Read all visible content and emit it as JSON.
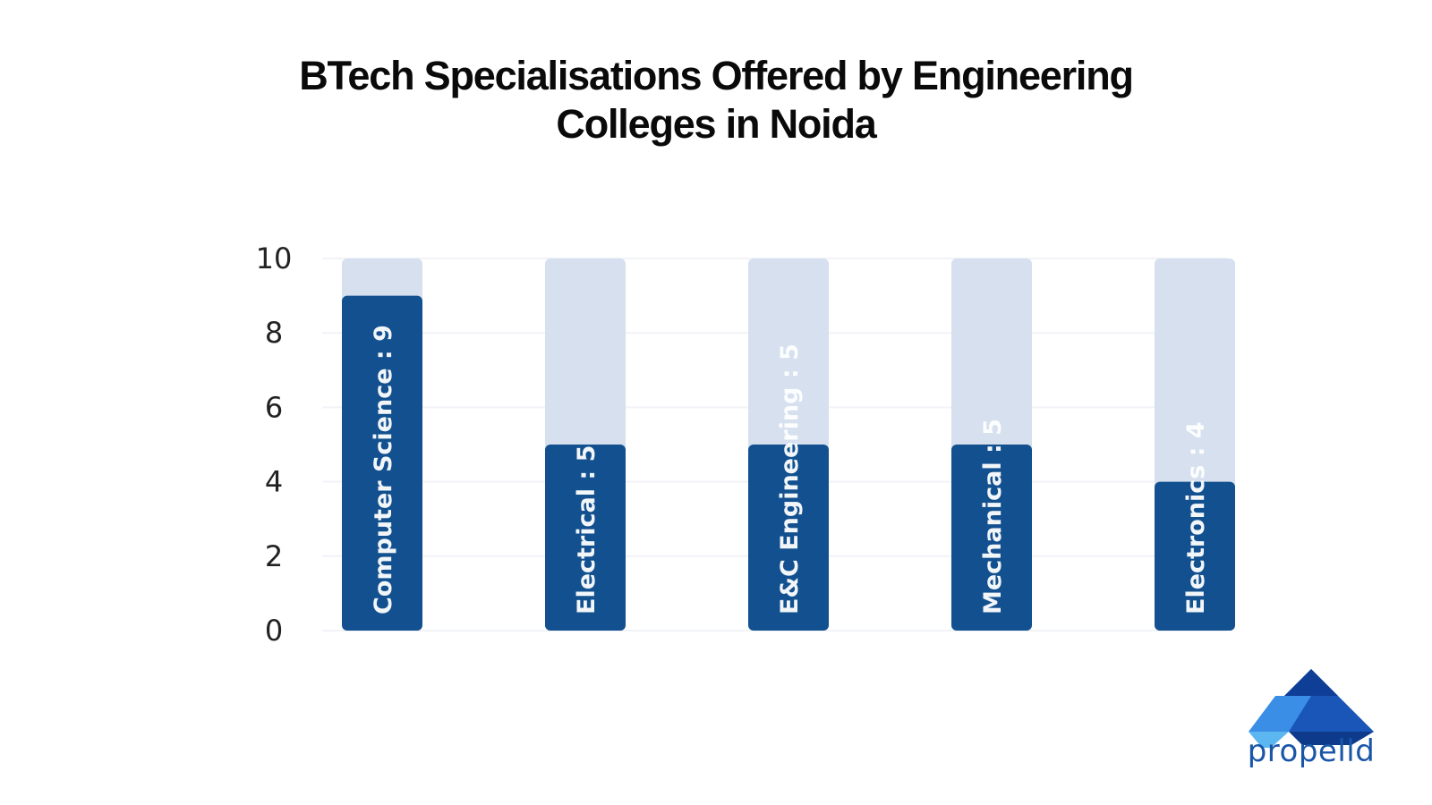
{
  "colors": {
    "bar": "#12508f",
    "track": "#d6e0ef",
    "grid": "#f1f3f7",
    "title": "#0a0a0a"
  },
  "chart_data": {
    "type": "bar",
    "title": [
      "BTech Specialisations Offered by Engineering",
      "Colleges in Noida"
    ],
    "categories": [
      "Computer Science",
      "Electrical",
      "E&C Engineering",
      "Mechanical",
      "Electronics"
    ],
    "values": [
      9,
      5,
      5,
      5,
      4
    ],
    "data_labels": [
      "Computer Science : 9",
      "Electrical : 5",
      "E&C Engineering : 5",
      "Mechanical  : 5",
      "Electronics : 4"
    ],
    "ylim": [
      0,
      10
    ],
    "yticks": [
      0,
      2,
      4,
      6,
      8,
      10
    ],
    "grid": true,
    "legend": "none"
  },
  "brand": {
    "name": "propelld",
    "logo_icon": "propelld-triangle-logo-icon"
  }
}
